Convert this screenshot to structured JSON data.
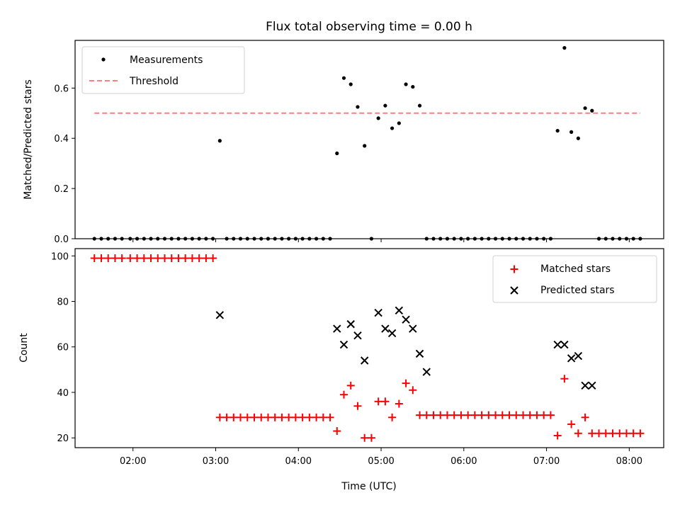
{
  "chart_data": [
    {
      "type": "scatter",
      "title": "Flux total observing time = 0.00 h",
      "xlabel": "",
      "ylabel": "Matched/Predicted stars",
      "xlim": [
        "01:18",
        "08:25"
      ],
      "ylim": [
        0,
        0.79
      ],
      "grid": false,
      "legend_position": "top-left",
      "yticks": [
        0.0,
        0.2,
        0.4,
        0.6
      ],
      "ytick_labels": [
        "0.0",
        "0.2",
        "0.4",
        "0.6"
      ],
      "series": [
        {
          "name": "Measurements",
          "marker": "dot",
          "color": "#000000",
          "x": [
            "01:32",
            "01:37",
            "01:42",
            "01:47",
            "01:52",
            "01:58",
            "02:03",
            "02:08",
            "02:13",
            "02:18",
            "02:23",
            "02:28",
            "02:33",
            "02:38",
            "02:43",
            "02:48",
            "02:53",
            "02:58",
            "03:03",
            "03:08",
            "03:13",
            "03:18",
            "03:23",
            "03:28",
            "03:33",
            "03:38",
            "03:43",
            "03:48",
            "03:53",
            "03:58",
            "04:03",
            "04:08",
            "04:13",
            "04:18",
            "04:23",
            "04:28",
            "04:33",
            "04:38",
            "04:43",
            "04:48",
            "04:53",
            "04:58",
            "05:03",
            "05:08",
            "05:13",
            "05:18",
            "05:23",
            "05:28",
            "05:33",
            "05:38",
            "05:43",
            "05:48",
            "05:53",
            "05:58",
            "06:03",
            "06:08",
            "06:13",
            "06:18",
            "06:23",
            "06:28",
            "06:33",
            "06:38",
            "06:43",
            "06:48",
            "06:53",
            "06:58",
            "07:03",
            "07:08",
            "07:13",
            "07:18",
            "07:23",
            "07:28",
            "07:33",
            "07:38",
            "07:43",
            "07:48",
            "07:53",
            "07:58",
            "08:03",
            "08:08"
          ],
          "y": [
            0,
            0,
            0,
            0,
            0,
            0,
            0,
            0,
            0,
            0,
            0,
            0,
            0,
            0,
            0,
            0,
            0,
            0,
            0.39,
            0,
            0,
            0,
            0,
            0,
            0,
            0,
            0,
            0,
            0,
            0,
            0,
            0,
            0,
            0,
            0,
            0.34,
            0.64,
            0.615,
            0.525,
            0.37,
            0,
            0.48,
            0.53,
            0.44,
            0.46,
            0.615,
            0.605,
            0.53,
            0,
            0,
            0,
            0,
            0,
            0,
            0,
            0,
            0,
            0,
            0,
            0,
            0,
            0,
            0,
            0,
            0,
            0,
            0,
            0.43,
            0.76,
            0.425,
            0.4,
            0.52,
            0.51,
            0,
            0,
            0,
            0,
            0,
            0,
            0
          ]
        },
        {
          "name": "Threshold",
          "style": "dashed",
          "color": "#ff7f7f",
          "x": [
            "01:32",
            "08:08"
          ],
          "y": [
            0.5,
            0.5
          ]
        }
      ]
    },
    {
      "type": "scatter",
      "title": "",
      "xlabel": "Time (UTC)",
      "ylabel": "Count",
      "xlim": [
        "01:18",
        "08:25"
      ],
      "ylim": [
        15.7,
        103.2
      ],
      "grid": false,
      "legend_position": "top-right",
      "xticks": [
        "02:00",
        "03:00",
        "04:00",
        "05:00",
        "06:00",
        "07:00",
        "08:00"
      ],
      "xtick_labels": [
        "02:00",
        "03:00",
        "04:00",
        "05:00",
        "06:00",
        "07:00",
        "08:00"
      ],
      "yticks": [
        20,
        40,
        60,
        80,
        100
      ],
      "ytick_labels": [
        "20",
        "40",
        "60",
        "80",
        "100"
      ],
      "series": [
        {
          "name": "Matched stars",
          "marker": "plus",
          "color": "#ff0000",
          "x": [
            "01:32",
            "01:37",
            "01:42",
            "01:47",
            "01:52",
            "01:58",
            "02:03",
            "02:08",
            "02:13",
            "02:18",
            "02:23",
            "02:28",
            "02:33",
            "02:38",
            "02:43",
            "02:48",
            "02:53",
            "02:58",
            "03:03",
            "03:08",
            "03:13",
            "03:18",
            "03:23",
            "03:28",
            "03:33",
            "03:38",
            "03:43",
            "03:48",
            "03:53",
            "03:58",
            "04:03",
            "04:08",
            "04:13",
            "04:18",
            "04:23",
            "04:28",
            "04:33",
            "04:38",
            "04:43",
            "04:48",
            "04:53",
            "04:58",
            "05:03",
            "05:08",
            "05:13",
            "05:18",
            "05:23",
            "05:28",
            "05:33",
            "05:38",
            "05:43",
            "05:48",
            "05:53",
            "05:58",
            "06:03",
            "06:08",
            "06:13",
            "06:18",
            "06:23",
            "06:28",
            "06:33",
            "06:38",
            "06:43",
            "06:48",
            "06:53",
            "06:58",
            "07:03",
            "07:08",
            "07:13",
            "07:18",
            "07:23",
            "07:28",
            "07:33",
            "07:38",
            "07:43",
            "07:48",
            "07:53",
            "07:58",
            "08:03",
            "08:08"
          ],
          "y": [
            99,
            99,
            99,
            99,
            99,
            99,
            99,
            99,
            99,
            99,
            99,
            99,
            99,
            99,
            99,
            99,
            99,
            99,
            29,
            29,
            29,
            29,
            29,
            29,
            29,
            29,
            29,
            29,
            29,
            29,
            29,
            29,
            29,
            29,
            29,
            23,
            39,
            43,
            34,
            20,
            20,
            36,
            36,
            29,
            35,
            44,
            41,
            30,
            30,
            30,
            30,
            30,
            30,
            30,
            30,
            30,
            30,
            30,
            30,
            30,
            30,
            30,
            30,
            30,
            30,
            30,
            30,
            21,
            46,
            26,
            22,
            29,
            22,
            22,
            22,
            22,
            22,
            22,
            22,
            22
          ]
        },
        {
          "name": "Predicted stars",
          "marker": "x",
          "color": "#000000",
          "x": [
            "03:03",
            "04:28",
            "04:33",
            "04:38",
            "04:43",
            "04:48",
            "04:58",
            "05:03",
            "05:08",
            "05:13",
            "05:18",
            "05:23",
            "05:28",
            "05:33",
            "07:08",
            "07:13",
            "07:18",
            "07:23",
            "07:28",
            "07:33"
          ],
          "y": [
            74,
            68,
            61,
            70,
            65,
            54,
            75,
            68,
            66,
            76,
            72,
            68,
            57,
            49,
            61,
            61,
            55,
            56,
            43,
            43
          ]
        }
      ]
    }
  ]
}
